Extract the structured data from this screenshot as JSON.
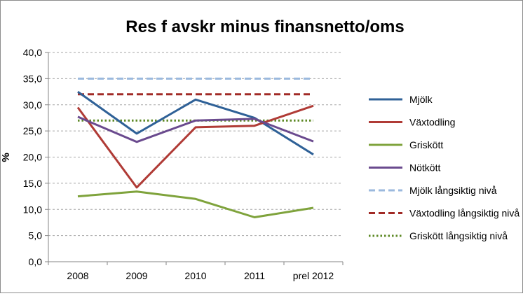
{
  "chart_data": {
    "type": "line",
    "title": "Res f avskr minus finansnetto/oms",
    "xlabel": "",
    "ylabel": "%",
    "categories": [
      "2008",
      "2009",
      "2010",
      "2011",
      "prel 2012"
    ],
    "y_ticks": [
      "0,0",
      "5,0",
      "10,0",
      "15,0",
      "20,0",
      "25,0",
      "30,0",
      "35,0",
      "40,0"
    ],
    "ylim": [
      0,
      40
    ],
    "grid": "horizontal dashed",
    "legend_position": "right",
    "series": [
      {
        "name": "Mjölk",
        "values": [
          32.5,
          24.5,
          31.0,
          27.5,
          20.5
        ],
        "color": "#2f6197",
        "style": "solid"
      },
      {
        "name": "Växtodling",
        "values": [
          29.5,
          14.2,
          25.7,
          26.0,
          29.8
        ],
        "color": "#b03b36",
        "style": "solid"
      },
      {
        "name": "Griskött",
        "values": [
          12.5,
          13.4,
          12.0,
          8.5,
          10.3
        ],
        "color": "#7fa33c",
        "style": "solid"
      },
      {
        "name": "Nötkött",
        "values": [
          27.7,
          22.9,
          27.0,
          27.3,
          23.0
        ],
        "color": "#6a4a8e",
        "style": "solid"
      },
      {
        "name": "Mjölk långsiktig nivå",
        "values": [
          35.0,
          35.0,
          35.0,
          35.0,
          35.0
        ],
        "color": "#9bb9de",
        "style": "dashed"
      },
      {
        "name": "Växtodling långsiktig nivå",
        "values": [
          32.0,
          32.0,
          32.0,
          32.0,
          32.0
        ],
        "color": "#a12a26",
        "style": "dashed"
      },
      {
        "name": "Griskött långsiktig nivå",
        "values": [
          27.0,
          27.0,
          27.0,
          27.0,
          27.0
        ],
        "color": "#5e8a26",
        "style": "dotted"
      }
    ]
  }
}
